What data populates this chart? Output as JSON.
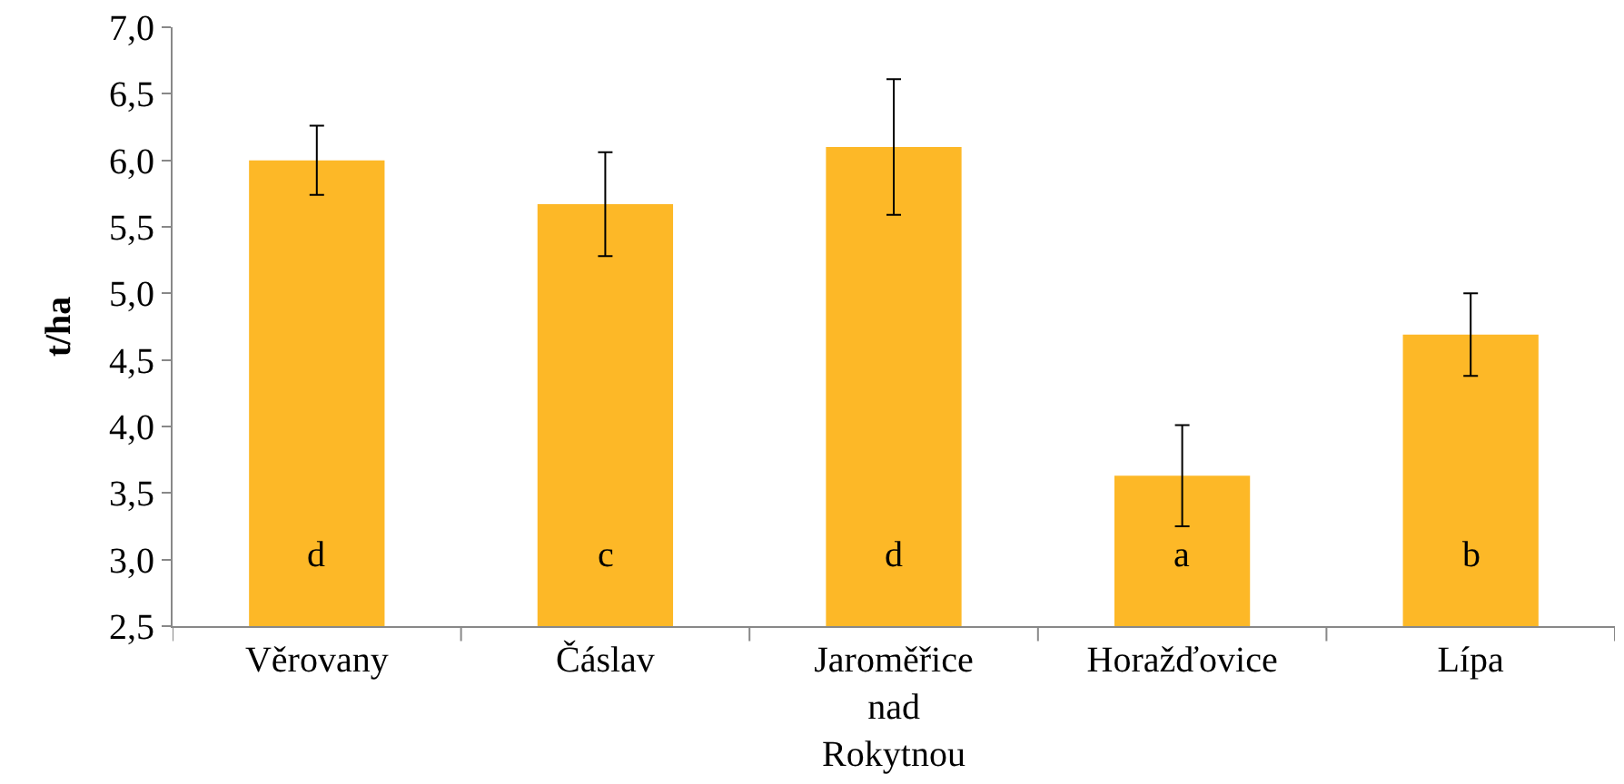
{
  "chart_data": {
    "type": "bar",
    "ylabel": "t/ha",
    "categories": [
      "Věrovany",
      "Čáslav",
      "Jaroměřice nad Rokytnou",
      "Horažďovice",
      "Lípa"
    ],
    "values": [
      6.0,
      5.67,
      6.1,
      3.63,
      4.69
    ],
    "errors": [
      0.26,
      0.39,
      0.51,
      0.38,
      0.31
    ],
    "color": "#fdb827",
    "ylim": [
      2.5,
      7.0
    ],
    "yticks": [
      {
        "value": 2.5,
        "label": "2,5"
      },
      {
        "value": 3.0,
        "label": "3,0"
      },
      {
        "value": 3.5,
        "label": "3,5"
      },
      {
        "value": 4.0,
        "label": "4,0"
      },
      {
        "value": 4.5,
        "label": "4,5"
      },
      {
        "value": 5.0,
        "label": "5,0"
      },
      {
        "value": 5.5,
        "label": "5,5"
      },
      {
        "value": 6.0,
        "label": "6,0"
      },
      {
        "value": 6.5,
        "label": "6,5"
      },
      {
        "value": 7.0,
        "label": "7,0"
      }
    ],
    "annotations": [
      "d",
      "c",
      "d",
      "a",
      "b"
    ]
  }
}
